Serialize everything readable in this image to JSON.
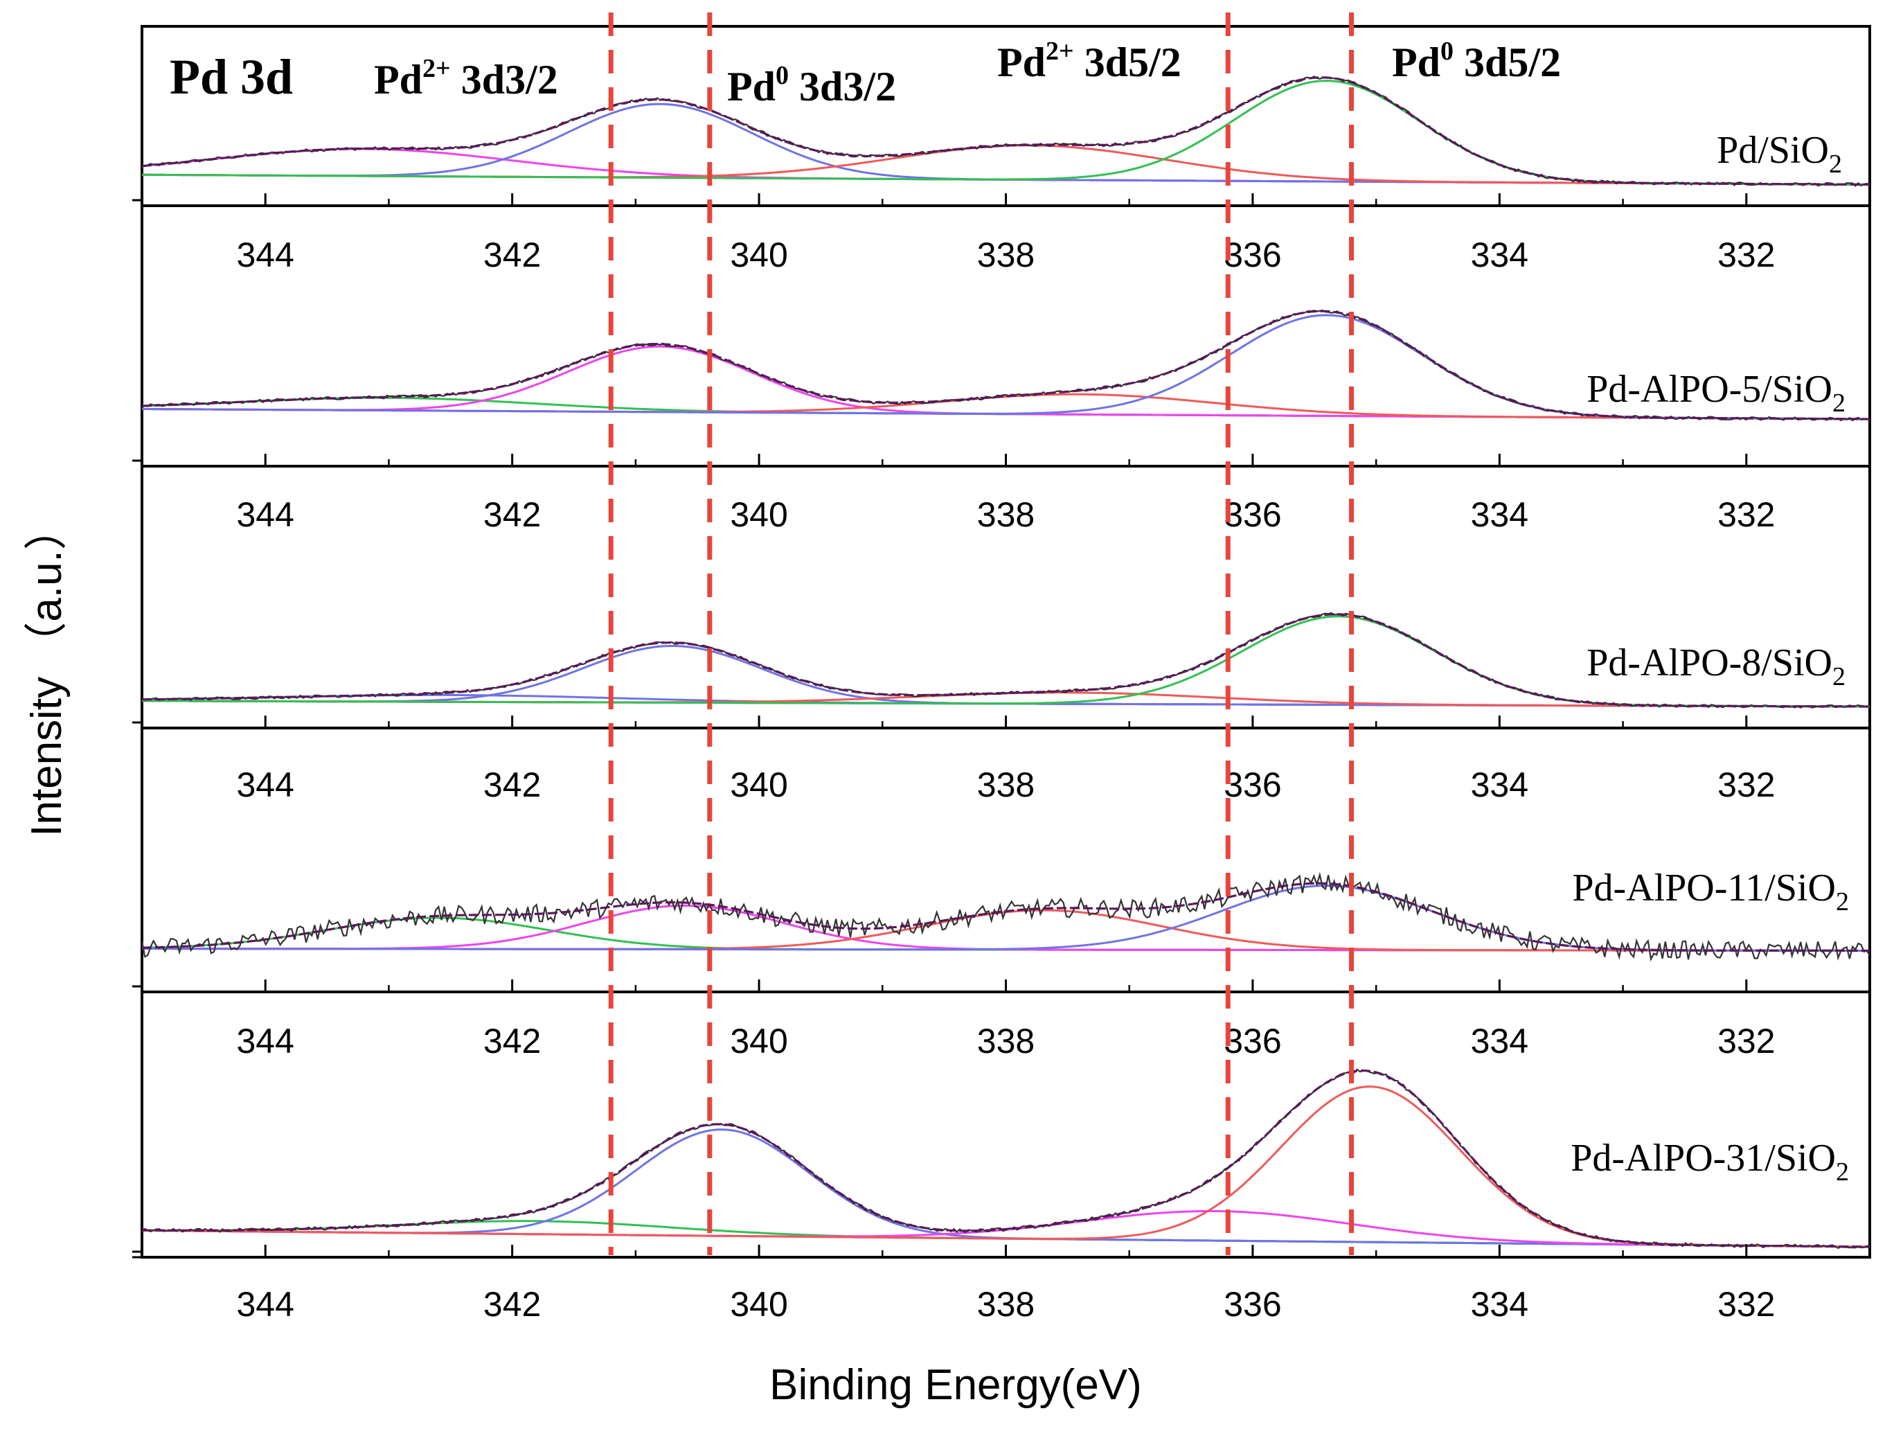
{
  "colors": {
    "raw": "#333333",
    "envelope": "#5a1a5a",
    "blue": "#6f73e6",
    "green": "#33c052",
    "red": "#ef5a5a",
    "magenta": "#ee44ee",
    "baseline": "#cc66ee",
    "guide": "#e8453a",
    "axis": "#000000"
  },
  "chart_data": {
    "type": "line",
    "title": "Pd 3d",
    "xlabel": "Binding Energy(eV)",
    "ylabel": "Intensity （a.u.）",
    "xlim": [
      345,
      331
    ],
    "x_ticks": [
      344,
      342,
      340,
      338,
      336,
      334,
      332
    ],
    "x_tick_labels": [
      "344",
      "342",
      "340",
      "338",
      "336",
      "334",
      "332"
    ],
    "peak_labels": [
      {
        "main": "Pd",
        "sup": "2+",
        "rest": " 3d3/2"
      },
      {
        "main": "Pd",
        "sup": "0",
        "rest": " 3d3/2"
      },
      {
        "main": "Pd",
        "sup": "2+",
        "rest": " 3d5/2"
      },
      {
        "main": "Pd",
        "sup": "0",
        "rest": " 3d5/2"
      }
    ],
    "guide_lines": [
      {
        "x": 341.2,
        "name": "Pd2+ 3d3/2"
      },
      {
        "x": 340.4,
        "name": "Pd0 3d3/2"
      },
      {
        "x": 336.2,
        "name": "Pd2+ 3d5/2"
      },
      {
        "x": 335.2,
        "name": "Pd0 3d5/2"
      }
    ],
    "panels": [
      {
        "name": "Pd/SiO2",
        "label_main": "Pd/SiO",
        "label_sub": "2",
        "ylim": [
          0,
          1.1
        ],
        "noise": 0.012,
        "baseline": [
          0.1,
          0.02
        ],
        "peaks": [
          {
            "center": 343.2,
            "height": 0.22,
            "width": 1.2,
            "color": "magenta"
          },
          {
            "center": 340.8,
            "height": 0.6,
            "width": 0.75,
            "color": "blue"
          },
          {
            "center": 337.8,
            "height": 0.28,
            "width": 1.1,
            "color": "red"
          },
          {
            "center": 335.4,
            "height": 0.82,
            "width": 0.75,
            "color": "green"
          }
        ]
      },
      {
        "name": "Pd-AlPO-5/SiO2",
        "label_main": "Pd-AlPO-5/SiO",
        "label_sub": "2",
        "ylim": [
          0,
          1.1
        ],
        "noise": 0.012,
        "baseline": [
          0.08,
          0.0
        ],
        "peaks": [
          {
            "center": 343.0,
            "height": 0.1,
            "width": 1.2,
            "color": "green"
          },
          {
            "center": 340.8,
            "height": 0.52,
            "width": 0.75,
            "color": "magenta"
          },
          {
            "center": 337.4,
            "height": 0.16,
            "width": 1.1,
            "color": "red"
          },
          {
            "center": 335.4,
            "height": 0.8,
            "width": 0.78,
            "color": "blue"
          }
        ]
      },
      {
        "name": "Pd-AlPO-8/SiO2",
        "label_main": "Pd-AlPO-8/SiO",
        "label_sub": "2",
        "ylim": [
          0,
          1.1
        ],
        "noise": 0.012,
        "baseline": [
          0.05,
          0.0
        ],
        "peaks": [
          {
            "center": 342.5,
            "height": 0.06,
            "width": 1.4,
            "color": "blue"
          },
          {
            "center": 340.7,
            "height": 0.5,
            "width": 0.72,
            "color": "blue"
          },
          {
            "center": 337.5,
            "height": 0.1,
            "width": 1.2,
            "color": "red"
          },
          {
            "center": 335.3,
            "height": 0.78,
            "width": 0.78,
            "color": "green"
          }
        ]
      },
      {
        "name": "Pd-AlPO-11/SiO2",
        "label_main": "Pd-AlPO-11/SiO",
        "label_sub": "2",
        "ylim": [
          -0.05,
          1.15
        ],
        "noise": 0.09,
        "baseline": [
          0.02,
          0.0
        ],
        "peaks": [
          {
            "center": 342.6,
            "height": 0.3,
            "width": 0.9,
            "color": "green"
          },
          {
            "center": 340.6,
            "height": 0.42,
            "width": 0.8,
            "color": "magenta"
          },
          {
            "center": 337.7,
            "height": 0.38,
            "width": 0.95,
            "color": "red"
          },
          {
            "center": 335.4,
            "height": 0.62,
            "width": 0.85,
            "color": "blue"
          }
        ]
      },
      {
        "name": "Pd-AlPO-31/SiO2",
        "label_main": "Pd-AlPO-31/SiO",
        "label_sub": "2",
        "ylim": [
          0,
          1.1
        ],
        "noise": 0.01,
        "baseline": [
          0.1,
          0.0
        ],
        "peaks": [
          {
            "center": 341.8,
            "height": 0.08,
            "width": 1.1,
            "color": "green"
          },
          {
            "center": 340.3,
            "height": 0.65,
            "width": 0.7,
            "color": "blue"
          },
          {
            "center": 336.3,
            "height": 0.18,
            "width": 1.1,
            "color": "magenta"
          },
          {
            "center": 335.05,
            "height": 0.95,
            "width": 0.72,
            "color": "red"
          }
        ]
      }
    ]
  }
}
